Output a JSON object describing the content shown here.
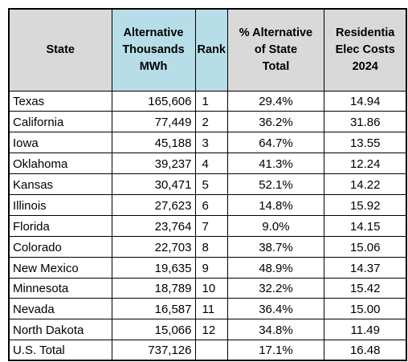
{
  "headers": {
    "state": "State",
    "alt_line1": "Alternative",
    "alt_line2": "Thousands",
    "alt_line3": "MWh",
    "rank": "Rank",
    "pct_line1": "% Alternative",
    "pct_line2": "of State",
    "pct_line3": "Total",
    "res_line1": "Residentia",
    "res_line2": "Elec Costs",
    "res_line3": "2024"
  },
  "rows": [
    {
      "state": "Texas",
      "alt": "165,606",
      "rank": "1",
      "pct": "29.4%",
      "res": "14.94"
    },
    {
      "state": "California",
      "alt": "77,449",
      "rank": "2",
      "pct": "36.2%",
      "res": "31.86"
    },
    {
      "state": "Iowa",
      "alt": "45,188",
      "rank": "3",
      "pct": "64.7%",
      "res": "13.55"
    },
    {
      "state": "Oklahoma",
      "alt": "39,237",
      "rank": "4",
      "pct": "41.3%",
      "res": "12.24"
    },
    {
      "state": "Kansas",
      "alt": "30,471",
      "rank": "5",
      "pct": "52.1%",
      "res": "14.22"
    },
    {
      "state": "Illinois",
      "alt": "27,623",
      "rank": "6",
      "pct": "14.8%",
      "res": "15.92"
    },
    {
      "state": "Florida",
      "alt": "23,764",
      "rank": "7",
      "pct": "9.0%",
      "res": "14.15"
    },
    {
      "state": "Colorado",
      "alt": "22,703",
      "rank": "8",
      "pct": "38.7%",
      "res": "15.06"
    },
    {
      "state": "New Mexico",
      "alt": "19,635",
      "rank": "9",
      "pct": "48.9%",
      "res": "14.37"
    },
    {
      "state": "Minnesota",
      "alt": "18,789",
      "rank": "10",
      "pct": "32.2%",
      "res": "15.42"
    },
    {
      "state": "Nevada",
      "alt": "16,587",
      "rank": "11",
      "pct": "36.4%",
      "res": "15.00"
    },
    {
      "state": "North Dakota",
      "alt": "15,066",
      "rank": "12",
      "pct": "34.8%",
      "res": "11.49"
    }
  ],
  "total": {
    "state": "U.S. Total",
    "alt": "737,126",
    "rank": "",
    "pct": "17.1%",
    "res": "16.48"
  },
  "colors": {
    "header_gray": "#d9d9d9",
    "header_blue": "#b7dee8"
  }
}
